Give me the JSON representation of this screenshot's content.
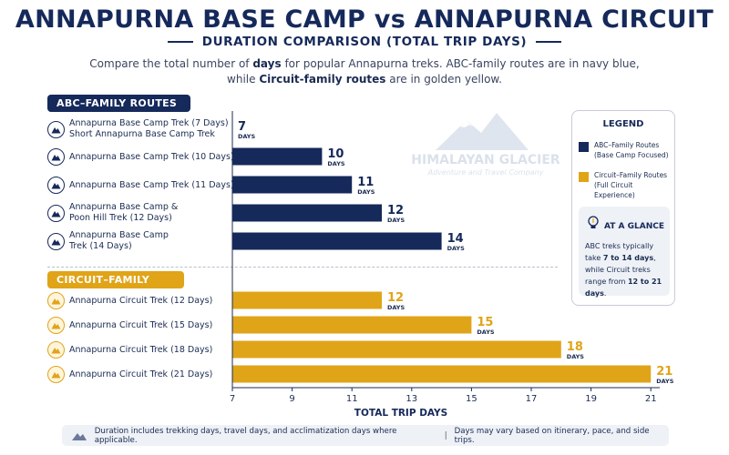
{
  "header": {
    "title": "ANNAPURNA BASE CAMP vs ANNAPURNA CIRCUIT",
    "subtitle": "DURATION COMPARISON (TOTAL TRIP DAYS)",
    "desc_line1_a": "Compare the total number of ",
    "desc_line1_b": "days",
    "desc_line1_c": " for popular Annapurna treks. ABC-family routes are in navy blue,",
    "desc_line2_a": "while ",
    "desc_line2_b": "Circuit-family routes",
    "desc_line2_c": " are in golden yellow."
  },
  "sections": {
    "abc_label": "ABC–FAMILY ROUTES",
    "circuit_label": "CIRCUIT–FAMILY ROUTES"
  },
  "watermark": {
    "line1": "HIMALAYAN GLACIER",
    "line2": "Adventure and Travel Company"
  },
  "legend": {
    "title": "LEGEND",
    "abc_line1": "ABC–Family Routes",
    "abc_line2": "(Base Camp Focused)",
    "circuit_line1": "Circuit–Family Routes",
    "circuit_line2": "(Full Circuit Experience)"
  },
  "glance": {
    "title": "AT A GLANCE",
    "text_a": "ABC treks typically take ",
    "text_b": "7 to 14 days",
    "text_c": ", while Circuit treks range from ",
    "text_d": "12 to 21 days",
    "text_e": "."
  },
  "footer": {
    "note1": "Duration includes trekking days, travel days, and acclimatization days where applicable.",
    "sep": "|",
    "note2": "Days may vary based on itinerary, pace, and side trips."
  },
  "colors": {
    "navy": "#15295a",
    "gold": "#e0a418"
  },
  "chart_data": {
    "type": "bar",
    "orientation": "horizontal",
    "title": "ANNAPURNA BASE CAMP vs ANNAPURNA CIRCUIT",
    "subtitle": "DURATION COMPARISON (TOTAL TRIP DAYS)",
    "xlabel": "TOTAL TRIP DAYS",
    "ylabel": "",
    "xlim": [
      7,
      22
    ],
    "xticks": [
      7,
      9,
      11,
      13,
      15,
      17,
      19,
      21
    ],
    "value_unit_label": "DAYS",
    "grid": false,
    "legend_position": "right",
    "series": [
      {
        "name": "ABC–Family Routes",
        "color": "#15295a",
        "categories": [
          [
            "Annapurna Base Camp Trek (7 Days)",
            "Short Annapurna Base Camp Trek"
          ],
          [
            "Annapurna Base Camp Trek (10 Days)"
          ],
          [
            "Annapurna Base Camp Trek (11 Days)"
          ],
          [
            "Annapurna Base Camp &",
            "Poon Hill Trek (12 Days)"
          ],
          [
            "Annapurna Base Camp",
            "Trek (14 Days)"
          ]
        ],
        "values": [
          7,
          10,
          11,
          12,
          14
        ]
      },
      {
        "name": "Circuit–Family Routes",
        "color": "#e0a418",
        "categories": [
          [
            "Annapurna Circuit Trek (12 Days)"
          ],
          [
            "Annapurna Circuit Trek (15 Days)"
          ],
          [
            "Annapurna Circuit Trek (18 Days)"
          ],
          [
            "Annapurna Circuit Trek (21 Days)"
          ]
        ],
        "values": [
          12,
          15,
          18,
          21
        ]
      }
    ]
  }
}
